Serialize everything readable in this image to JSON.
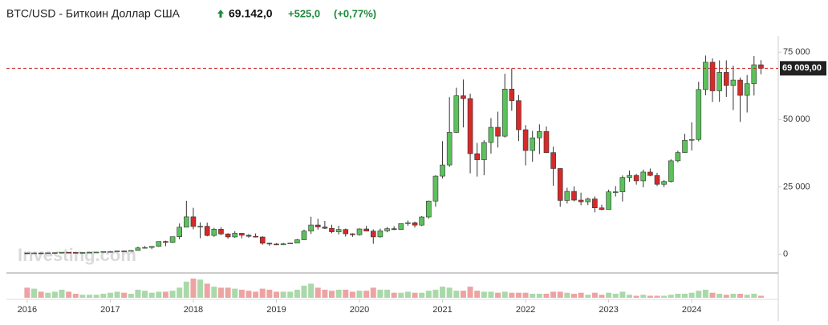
{
  "chart_data": {
    "type": "candlestick",
    "title": "BTC/USD - Биткоин Доллар США",
    "price": "69.142,0",
    "change": "+525,0",
    "change_pct": "(+0,77%)",
    "watermark": "Investing.com",
    "up_color": "#5cc15c",
    "down_color": "#d42a2a",
    "volume_up_color": "#a9d9a9",
    "volume_down_color": "#eea3a3",
    "last_price": {
      "value": 69009,
      "label": "69 009,00"
    },
    "xlim": [
      -3,
      108.5
    ],
    "xticks": [
      {
        "value": 0,
        "label": "2016"
      },
      {
        "value": 12,
        "label": "2017"
      },
      {
        "value": 24,
        "label": "2018"
      },
      {
        "value": 36,
        "label": "2019"
      },
      {
        "value": 48,
        "label": "2020"
      },
      {
        "value": 60,
        "label": "2021"
      },
      {
        "value": 72,
        "label": "2022"
      },
      {
        "value": 84,
        "label": "2023"
      },
      {
        "value": 96,
        "label": "2024"
      }
    ],
    "ylim": [
      -7000,
      81000
    ],
    "yticks": [
      0,
      {
        "value": 25000,
        "label": "25 000"
      },
      {
        "value": 50000,
        "label": "50 000"
      },
      {
        "value": 75000,
        "label": "75 000"
      }
    ],
    "open": [
      430,
      368,
      437,
      416,
      448,
      531,
      673,
      624,
      574,
      609,
      701,
      745,
      966,
      970,
      1190,
      1080,
      1350,
      2300,
      2480,
      2875,
      4700,
      4340,
      6470,
      10000,
      13850,
      10270,
      10330,
      6930,
      9240,
      7500,
      6390,
      7730,
      7010,
      6630,
      6370,
      4040,
      3740,
      3460,
      3810,
      4100,
      5320,
      8570,
      10820,
      10080,
      9590,
      8290,
      9150,
      7550,
      7200,
      9350,
      8540,
      6410,
      8630,
      9450,
      9140,
      11350,
      11650,
      10780,
      13800,
      19700,
      28950,
      33110,
      45200,
      58800,
      57750,
      37300,
      35040,
      41460,
      47100,
      43800,
      61300,
      57000,
      46200,
      38480,
      43190,
      45530,
      37700,
      31800,
      19930,
      23300,
      20050,
      19430,
      20490,
      17170,
      16540,
      23130,
      23140,
      28480,
      29240,
      27210,
      30470,
      29230,
      25930,
      26970,
      34660,
      37720,
      42280,
      42580,
      61130,
      71290,
      60640,
      67490,
      62680,
      64630,
      58970,
      63300,
      70300
    ],
    "high": [
      460,
      448,
      440,
      470,
      550,
      780,
      705,
      627,
      620,
      740,
      755,
      975,
      1150,
      1200,
      1300,
      1350,
      2760,
      3000,
      2920,
      4750,
      4980,
      6470,
      11400,
      19800,
      17200,
      11800,
      11700,
      9770,
      9990,
      7760,
      8500,
      7760,
      7410,
      7680,
      6600,
      4250,
      4100,
      4200,
      4140,
      5610,
      9090,
      13880,
      13130,
      12320,
      10900,
      10540,
      9500,
      7750,
      9580,
      10500,
      9190,
      9470,
      10070,
      10380,
      11440,
      12470,
      12070,
      14100,
      19860,
      29300,
      41950,
      58330,
      61800,
      64850,
      59600,
      41300,
      42300,
      50500,
      52900,
      67000,
      69000,
      59100,
      47900,
      45800,
      48200,
      47400,
      39900,
      31900,
      24650,
      25200,
      22800,
      21000,
      21450,
      18360,
      23950,
      25250,
      29200,
      31000,
      29800,
      31400,
      31800,
      30200,
      27500,
      35200,
      38400,
      44700,
      48970,
      64000,
      73750,
      72700,
      71950,
      71950,
      70000,
      65600,
      66500,
      73600,
      72000
    ],
    "low": [
      350,
      365,
      400,
      413,
      440,
      525,
      600,
      530,
      590,
      605,
      690,
      740,
      750,
      920,
      890,
      1070,
      1340,
      2080,
      1830,
      2670,
      2950,
      4100,
      5500,
      10000,
      9200,
      5900,
      6600,
      6430,
      7060,
      5760,
      6070,
      5880,
      6120,
      6200,
      3500,
      3150,
      3380,
      3400,
      3730,
      4100,
      5320,
      7480,
      9070,
      9320,
      7760,
      7300,
      6520,
      6430,
      6870,
      8440,
      3850,
      6150,
      8110,
      8900,
      8980,
      10550,
      9870,
      10430,
      13200,
      17600,
      28130,
      32400,
      45000,
      47050,
      30000,
      28800,
      29280,
      37330,
      39600,
      43300,
      53250,
      42000,
      32950,
      34300,
      37200,
      37700,
      25400,
      17600,
      18800,
      19600,
      18150,
      18200,
      15500,
      16300,
      16500,
      21400,
      19550,
      26900,
      25800,
      24800,
      28900,
      25300,
      24900,
      26550,
      34100,
      37600,
      38500,
      41900,
      59000,
      56500,
      56550,
      58400,
      53500,
      49100,
      52600,
      58900,
      66800
    ],
    "close": [
      368,
      437,
      416,
      448,
      531,
      673,
      624,
      574,
      609,
      701,
      745,
      966,
      970,
      1190,
      1080,
      1350,
      2300,
      2480,
      2875,
      4700,
      4340,
      6470,
      10000,
      13850,
      10270,
      10330,
      6930,
      9240,
      7500,
      6390,
      7730,
      7010,
      6630,
      6370,
      4040,
      3740,
      3460,
      3810,
      4100,
      5320,
      8570,
      10820,
      10080,
      9590,
      8290,
      9150,
      7550,
      7200,
      9350,
      8540,
      6410,
      8630,
      9450,
      9140,
      11350,
      11650,
      10780,
      13800,
      19700,
      28950,
      33110,
      45200,
      58800,
      57750,
      37300,
      35040,
      41460,
      47100,
      43800,
      61300,
      57000,
      46200,
      38480,
      43190,
      45530,
      37700,
      31800,
      19930,
      23300,
      20050,
      19430,
      20490,
      17170,
      16540,
      23130,
      23140,
      28480,
      29240,
      27210,
      30470,
      29230,
      25930,
      26970,
      34660,
      37720,
      42280,
      42580,
      61130,
      71290,
      60640,
      67490,
      62680,
      64630,
      58970,
      63300,
      70300,
      69009
    ],
    "volume": [
      50,
      45,
      30,
      25,
      30,
      40,
      30,
      20,
      15,
      15,
      15,
      20,
      25,
      30,
      25,
      20,
      40,
      35,
      25,
      30,
      30,
      35,
      50,
      80,
      95,
      90,
      70,
      55,
      50,
      50,
      45,
      40,
      35,
      30,
      45,
      40,
      30,
      30,
      30,
      40,
      60,
      70,
      50,
      40,
      35,
      40,
      40,
      30,
      35,
      35,
      50,
      40,
      40,
      25,
      25,
      30,
      25,
      25,
      35,
      40,
      55,
      50,
      35,
      35,
      55,
      35,
      30,
      30,
      25,
      30,
      25,
      25,
      25,
      20,
      20,
      20,
      30,
      30,
      25,
      20,
      25,
      15,
      25,
      15,
      25,
      20,
      30,
      15,
      10,
      15,
      10,
      10,
      10,
      15,
      20,
      20,
      25,
      35,
      40,
      25,
      20,
      15,
      20,
      20,
      15,
      20,
      10
    ]
  }
}
